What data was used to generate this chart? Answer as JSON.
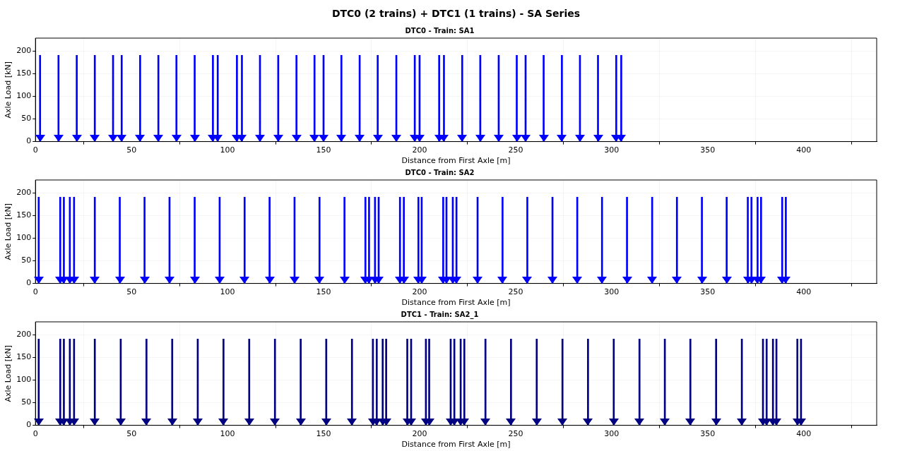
{
  "chart_data": [
    {
      "type": "bar",
      "title": "DTC0 (2 trains) + DTC1 (1 trains) - SA Series",
      "subtitle": "DTC0 - Train: SA1",
      "xlabel": "Distance from First Axle [m]",
      "ylabel": "Axle Load [kN]",
      "grid": true,
      "xlim": [
        0,
        438
      ],
      "xticks": [
        0,
        50,
        100,
        150,
        200,
        250,
        300,
        350,
        400
      ],
      "ylim": [
        0,
        228
      ],
      "yticks": [
        0,
        50,
        100,
        150,
        200
      ],
      "series": [
        {
          "color": "#0000ff",
          "x": [
            2.4,
            12,
            21.5,
            30.9,
            40.4,
            44.9,
            54.5,
            64,
            73.4,
            82.9,
            92.4,
            94.9,
            104.9,
            107.5,
            116.9,
            126.4,
            135.9,
            145.3,
            150,
            159.3,
            168.8,
            178.2,
            187.9,
            197.5,
            200,
            210.2,
            212.7,
            222.2,
            231.6,
            241.2,
            250.6,
            255.2,
            264.6,
            274.1,
            283.5,
            292.9,
            302.4,
            305
          ],
          "values": [
            190,
            190,
            190,
            190,
            190,
            190,
            190,
            190,
            190,
            190,
            190,
            190,
            190,
            190,
            190,
            190,
            190,
            190,
            190,
            190,
            190,
            190,
            190,
            190,
            190,
            190,
            190,
            190,
            190,
            190,
            190,
            190,
            190,
            190,
            190,
            190,
            190,
            190
          ]
        }
      ]
    },
    {
      "type": "bar",
      "title": "DTC0 - Train: SA2",
      "xlabel": "Distance from First Axle [m]",
      "ylabel": "Axle Load [kN]",
      "grid": true,
      "xlim": [
        0,
        438
      ],
      "xticks": [
        0,
        50,
        100,
        150,
        200,
        250,
        300,
        350,
        400
      ],
      "ylim": [
        0,
        228
      ],
      "yticks": [
        0,
        50,
        100,
        150,
        200
      ],
      "series": [
        {
          "color": "#0000ff",
          "x": [
            1.7,
            12.9,
            14.8,
            17.9,
            20.1,
            30.9,
            43.9,
            56.8,
            69.8,
            82.9,
            95.9,
            108.9,
            121.9,
            134.9,
            147.9,
            160.9,
            171.8,
            173.7,
            176.8,
            178.7,
            189.8,
            191.8,
            199.4,
            201.1,
            212.3,
            214,
            217.3,
            219.2,
            230.2,
            243.2,
            256.1,
            269.2,
            282.1,
            295,
            308,
            321.1,
            334,
            347,
            359.9,
            370.9,
            372.8,
            376,
            377.8,
            388.8,
            390.7
          ],
          "values": [
            190,
            190,
            190,
            190,
            190,
            190,
            190,
            190,
            190,
            190,
            190,
            190,
            190,
            190,
            190,
            190,
            190,
            190,
            190,
            190,
            190,
            190,
            190,
            190,
            190,
            190,
            190,
            190,
            190,
            190,
            190,
            190,
            190,
            190,
            190,
            190,
            190,
            190,
            190,
            190,
            190,
            190,
            190,
            190,
            190
          ]
        }
      ]
    },
    {
      "type": "bar",
      "title": "DTC1 - Train: SA2_1",
      "xlabel": "Distance from First Axle [m]",
      "ylabel": "Axle Load [kN]",
      "grid": true,
      "xlim": [
        0,
        438
      ],
      "xticks": [
        0,
        50,
        100,
        150,
        200,
        250,
        300,
        350,
        400
      ],
      "ylim": [
        0,
        228
      ],
      "yticks": [
        0,
        50,
        100,
        150,
        200
      ],
      "series": [
        {
          "color": "#000080",
          "x": [
            1.7,
            12.9,
            14.8,
            17.9,
            20.1,
            30.9,
            44.4,
            57.8,
            71.2,
            84.5,
            97.9,
            111.3,
            124.7,
            138.1,
            151.4,
            164.8,
            175.7,
            177.7,
            180.8,
            182.6,
            193.6,
            195.6,
            203.3,
            205,
            216.2,
            218.1,
            221.4,
            223.3,
            234.3,
            247.6,
            261,
            274.4,
            287.7,
            301.1,
            314.5,
            327.7,
            341,
            354.4,
            367.8,
            378.8,
            380.7,
            384,
            385.8,
            396.7,
            398.6
          ],
          "values": [
            190,
            190,
            190,
            190,
            190,
            190,
            190,
            190,
            190,
            190,
            190,
            190,
            190,
            190,
            190,
            190,
            190,
            190,
            190,
            190,
            190,
            190,
            190,
            190,
            190,
            190,
            190,
            190,
            190,
            190,
            190,
            190,
            190,
            190,
            190,
            190,
            190,
            190,
            190,
            190,
            190,
            190,
            190,
            190,
            190
          ]
        }
      ]
    }
  ]
}
